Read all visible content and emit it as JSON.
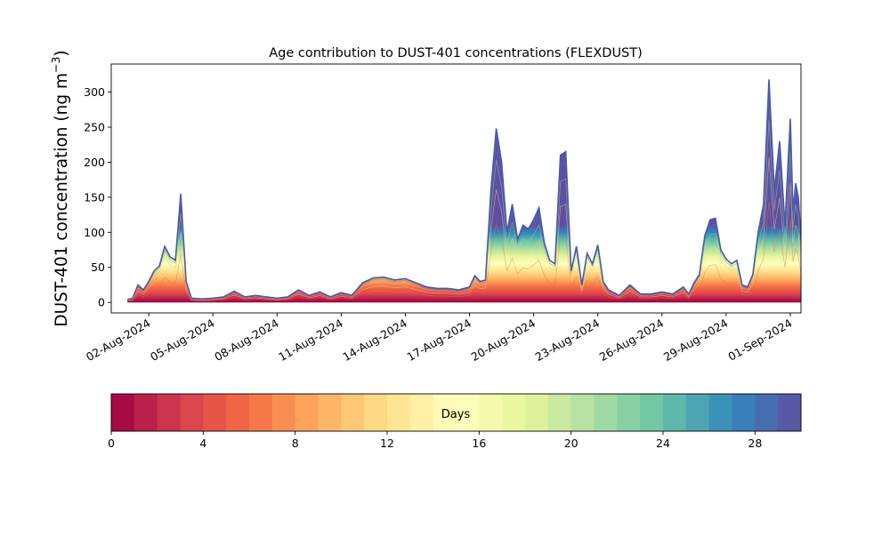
{
  "chart_data": {
    "type": "area",
    "title": "Age contribution to DUST-401 concentrations (FLEXDUST)",
    "ylabel": "DUST-401 concentration (ng m⁻³)",
    "ylabel_main": "DUST-401 concentration (ng m",
    "ylabel_sup": "−3",
    "ylabel_end": ")",
    "xlabel": "",
    "x_start": "2024-08-01",
    "x_end": "2024-08-31",
    "xlim": [
      "2024-07-31T06:00",
      "2024-09-01T12:00"
    ],
    "ylim": [
      -15,
      340
    ],
    "y_ticks": [
      0,
      50,
      100,
      150,
      200,
      250,
      300
    ],
    "x_ticks": [
      "02-Aug-2024",
      "05-Aug-2024",
      "08-Aug-2024",
      "11-Aug-2024",
      "14-Aug-2024",
      "17-Aug-2024",
      "20-Aug-2024",
      "23-Aug-2024",
      "26-Aug-2024",
      "29-Aug-2024",
      "01-Sep-2024"
    ],
    "x_tick_dates": [
      "2024-08-02",
      "2024-08-05",
      "2024-08-08",
      "2024-08-11",
      "2024-08-14",
      "2024-08-17",
      "2024-08-20",
      "2024-08-23",
      "2024-08-26",
      "2024-08-29",
      "2024-09-01"
    ],
    "total_concentration": [
      [
        "2024-08-01T00:00",
        4
      ],
      [
        "2024-08-01T06:00",
        6
      ],
      [
        "2024-08-01T12:00",
        25
      ],
      [
        "2024-08-01T18:00",
        18
      ],
      [
        "2024-08-02T00:00",
        30
      ],
      [
        "2024-08-02T06:00",
        45
      ],
      [
        "2024-08-02T12:00",
        52
      ],
      [
        "2024-08-02T18:00",
        80
      ],
      [
        "2024-08-03T00:00",
        65
      ],
      [
        "2024-08-03T06:00",
        60
      ],
      [
        "2024-08-03T12:00",
        155
      ],
      [
        "2024-08-03T18:00",
        30
      ],
      [
        "2024-08-04T00:00",
        6
      ],
      [
        "2024-08-04T12:00",
        5
      ],
      [
        "2024-08-05T00:00",
        6
      ],
      [
        "2024-08-05T12:00",
        8
      ],
      [
        "2024-08-06T00:00",
        16
      ],
      [
        "2024-08-06T12:00",
        8
      ],
      [
        "2024-08-07T00:00",
        10
      ],
      [
        "2024-08-07T12:00",
        8
      ],
      [
        "2024-08-08T00:00",
        6
      ],
      [
        "2024-08-08T12:00",
        8
      ],
      [
        "2024-08-09T00:00",
        18
      ],
      [
        "2024-08-09T12:00",
        10
      ],
      [
        "2024-08-10T00:00",
        15
      ],
      [
        "2024-08-10T12:00",
        8
      ],
      [
        "2024-08-11T00:00",
        14
      ],
      [
        "2024-08-11T12:00",
        10
      ],
      [
        "2024-08-12T00:00",
        28
      ],
      [
        "2024-08-12T12:00",
        35
      ],
      [
        "2024-08-13T00:00",
        36
      ],
      [
        "2024-08-13T12:00",
        32
      ],
      [
        "2024-08-14T00:00",
        34
      ],
      [
        "2024-08-14T12:00",
        28
      ],
      [
        "2024-08-15T00:00",
        22
      ],
      [
        "2024-08-15T12:00",
        20
      ],
      [
        "2024-08-16T00:00",
        20
      ],
      [
        "2024-08-16T12:00",
        18
      ],
      [
        "2024-08-17T00:00",
        22
      ],
      [
        "2024-08-17T06:00",
        38
      ],
      [
        "2024-08-17T12:00",
        30
      ],
      [
        "2024-08-17T18:00",
        32
      ],
      [
        "2024-08-18T00:00",
        160
      ],
      [
        "2024-08-18T06:00",
        248
      ],
      [
        "2024-08-18T12:00",
        200
      ],
      [
        "2024-08-18T18:00",
        100
      ],
      [
        "2024-08-19T00:00",
        140
      ],
      [
        "2024-08-19T06:00",
        90
      ],
      [
        "2024-08-19T12:00",
        110
      ],
      [
        "2024-08-19T18:00",
        105
      ],
      [
        "2024-08-20T00:00",
        118
      ],
      [
        "2024-08-20T06:00",
        135
      ],
      [
        "2024-08-20T12:00",
        85
      ],
      [
        "2024-08-20T18:00",
        60
      ],
      [
        "2024-08-21T00:00",
        55
      ],
      [
        "2024-08-21T06:00",
        210
      ],
      [
        "2024-08-21T12:00",
        215
      ],
      [
        "2024-08-21T18:00",
        45
      ],
      [
        "2024-08-22T00:00",
        80
      ],
      [
        "2024-08-22T06:00",
        25
      ],
      [
        "2024-08-22T12:00",
        70
      ],
      [
        "2024-08-22T18:00",
        55
      ],
      [
        "2024-08-23T00:00",
        82
      ],
      [
        "2024-08-23T06:00",
        30
      ],
      [
        "2024-08-23T12:00",
        18
      ],
      [
        "2024-08-24T00:00",
        10
      ],
      [
        "2024-08-24T12:00",
        25
      ],
      [
        "2024-08-25T00:00",
        12
      ],
      [
        "2024-08-25T12:00",
        12
      ],
      [
        "2024-08-26T00:00",
        15
      ],
      [
        "2024-08-26T12:00",
        12
      ],
      [
        "2024-08-27T00:00",
        22
      ],
      [
        "2024-08-27T06:00",
        12
      ],
      [
        "2024-08-27T12:00",
        28
      ],
      [
        "2024-08-27T18:00",
        40
      ],
      [
        "2024-08-28T00:00",
        95
      ],
      [
        "2024-08-28T06:00",
        118
      ],
      [
        "2024-08-28T12:00",
        120
      ],
      [
        "2024-08-28T18:00",
        75
      ],
      [
        "2024-08-29T00:00",
        62
      ],
      [
        "2024-08-29T06:00",
        55
      ],
      [
        "2024-08-29T12:00",
        60
      ],
      [
        "2024-08-29T18:00",
        25
      ],
      [
        "2024-08-30T00:00",
        22
      ],
      [
        "2024-08-30T06:00",
        40
      ],
      [
        "2024-08-30T12:00",
        100
      ],
      [
        "2024-08-30T18:00",
        140
      ],
      [
        "2024-08-31T00:00",
        318
      ],
      [
        "2024-08-31T06:00",
        160
      ],
      [
        "2024-08-31T12:00",
        230
      ],
      [
        "2024-08-31T18:00",
        110
      ],
      [
        "2024-09-01T00:00",
        262
      ],
      [
        "2024-09-01T03:00",
        130
      ],
      [
        "2024-09-01T06:00",
        170
      ],
      [
        "2024-09-01T09:00",
        150
      ],
      [
        "2024-09-01T12:00",
        90
      ],
      [
        "2024-09-01T15:00",
        60
      ],
      [
        "2024-09-01T18:00",
        65
      ],
      [
        "2024-09-01T21:00",
        50
      ]
    ],
    "colorbar": {
      "label": "Days",
      "min": 0,
      "max": 30,
      "ticks": [
        0,
        4,
        8,
        12,
        16,
        20,
        24,
        28
      ],
      "colormap": "Spectral",
      "colors": [
        "#9e0142",
        "#d53e4f",
        "#f46d43",
        "#fdae61",
        "#fee08b",
        "#ffffbf",
        "#e6f598",
        "#abdda4",
        "#66c2a5",
        "#3288bd",
        "#5e4fa2"
      ]
    },
    "grid": false,
    "legend": "colorbar-bottom"
  }
}
